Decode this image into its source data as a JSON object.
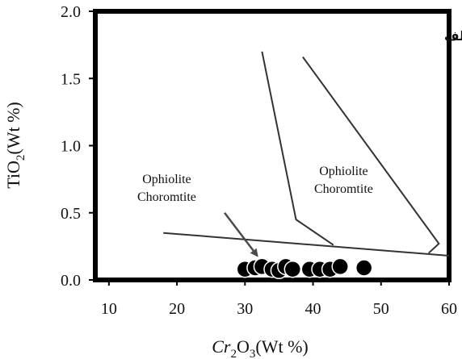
{
  "chart_data": {
    "type": "scatter",
    "panel_label": "الف",
    "xlabel": {
      "base": "Cr",
      "sub1": "2",
      "mid": "O",
      "sub2": "3",
      "unit": "(Wt %)"
    },
    "ylabel": {
      "base": "TiO",
      "sub": "2",
      "unit": "(Wt %)"
    },
    "xlim": [
      8,
      60
    ],
    "ylim": [
      0,
      2.0
    ],
    "x_ticks": [
      10,
      20,
      30,
      40,
      50,
      60
    ],
    "x_tick_labels": [
      "10",
      "20",
      "30",
      "40",
      "50",
      "60"
    ],
    "y_ticks": [
      0.0,
      0.5,
      1.0,
      1.5,
      2.0
    ],
    "y_tick_labels": [
      "0.0",
      "0.5",
      "1.0",
      "1.5",
      "2.0"
    ],
    "grid": false,
    "fields": [
      {
        "label_line1": "Ophiolite",
        "label_line2": "Choromtite",
        "label_x": 18.5,
        "label_y": 0.72
      },
      {
        "label_line1": "Ophiolite",
        "label_line2": "Choromtite",
        "label_x": 44.5,
        "label_y": 0.78
      }
    ],
    "boundaries": [
      [
        [
          18,
          0.35
        ],
        [
          60,
          0.18
        ]
      ],
      [
        [
          32.5,
          1.7
        ],
        [
          37.5,
          0.45
        ],
        [
          43,
          0.26
        ]
      ],
      [
        [
          38.5,
          1.66
        ],
        [
          58.5,
          0.27
        ],
        [
          57,
          0.2
        ]
      ]
    ],
    "arrow": {
      "from": [
        27,
        0.5
      ],
      "to": [
        31.8,
        0.18
      ]
    },
    "points": [
      {
        "x": 30.0,
        "y": 0.08
      },
      {
        "x": 31.5,
        "y": 0.09
      },
      {
        "x": 32.5,
        "y": 0.1
      },
      {
        "x": 34.0,
        "y": 0.08
      },
      {
        "x": 35.0,
        "y": 0.07
      },
      {
        "x": 36.0,
        "y": 0.1
      },
      {
        "x": 37.0,
        "y": 0.08
      },
      {
        "x": 39.5,
        "y": 0.08
      },
      {
        "x": 41.0,
        "y": 0.08
      },
      {
        "x": 42.5,
        "y": 0.08
      },
      {
        "x": 44.0,
        "y": 0.1
      },
      {
        "x": 47.5,
        "y": 0.09
      }
    ]
  }
}
